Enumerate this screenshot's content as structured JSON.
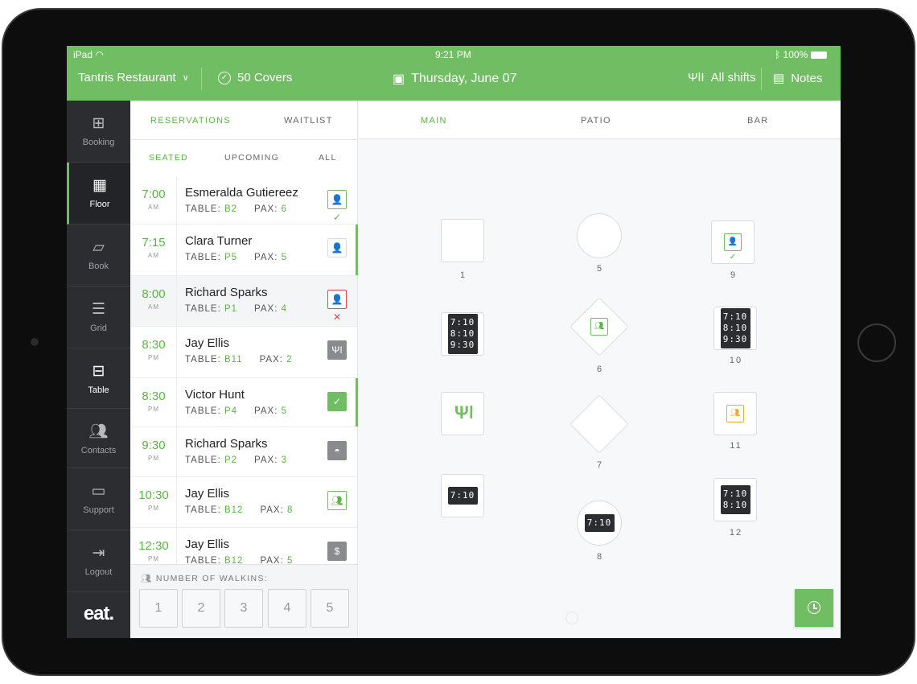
{
  "status_bar": {
    "device": "iPad",
    "time": "9:21 PM",
    "battery": "100%"
  },
  "header": {
    "restaurant": "Tantris Restaurant",
    "covers": "50 Covers",
    "date": "Thursday, June 07",
    "shifts": "All shifts",
    "notes": "Notes"
  },
  "colors": {
    "accent": "#71bd63",
    "sidebar": "#2c2d31",
    "cancel": "#e5474f",
    "pending": "#f0a93a"
  },
  "sidebar": {
    "items": [
      {
        "label": "Booking",
        "icon": "calendar-plus-icon"
      },
      {
        "label": "Floor",
        "icon": "grid-icon",
        "active": true
      },
      {
        "label": "Book",
        "icon": "book-icon"
      },
      {
        "label": "Grid",
        "icon": "menu-lines-icon"
      },
      {
        "label": "Table",
        "icon": "table-icon"
      },
      {
        "label": "Contacts",
        "icon": "contacts-icon"
      },
      {
        "label": "Support",
        "icon": "chat-icon"
      },
      {
        "label": "Logout",
        "icon": "logout-icon"
      }
    ],
    "logo": "eat."
  },
  "list": {
    "tabs": [
      "RESERVATIONS",
      "WAITLIST"
    ],
    "subtabs": [
      "SEATED",
      "UPCOMING",
      "ALL"
    ],
    "table_label": "TABLE:",
    "pax_label": "PAX:",
    "rows": [
      {
        "time": "7:00",
        "ampm": "AM",
        "name": "Esmeralda Gutiereez",
        "table": "B2",
        "pax": "6",
        "status": "confirmed"
      },
      {
        "time": "7:15",
        "ampm": "AM",
        "name": "Clara Turner",
        "table": "P5",
        "pax": "5",
        "status": "unconfirmed"
      },
      {
        "time": "8:00",
        "ampm": "AM",
        "name": "Richard Sparks",
        "table": "P1",
        "pax": "4",
        "status": "cancelled"
      },
      {
        "time": "8:30",
        "ampm": "PM",
        "name": "Jay Ellis",
        "table": "B11",
        "pax": "2",
        "status": "eating"
      },
      {
        "time": "8:30",
        "ampm": "PM",
        "name": "Victor Hunt",
        "table": "P4",
        "pax": "5",
        "status": "checked"
      },
      {
        "time": "9:30",
        "ampm": "PM",
        "name": "Richard Sparks",
        "table": "P2",
        "pax": "3",
        "status": "dessert"
      },
      {
        "time": "10:30",
        "ampm": "PM",
        "name": "Jay Ellis",
        "table": "B12",
        "pax": "8",
        "status": "seated"
      },
      {
        "time": "12:30",
        "ampm": "PM",
        "name": "Jay Ellis",
        "table": "B12",
        "pax": "5",
        "status": "paid"
      }
    ]
  },
  "walkins": {
    "label": "NUMBER OF WALKINS:",
    "options": [
      "1",
      "2",
      "3",
      "4",
      "5"
    ]
  },
  "floor": {
    "tabs": [
      "MAIN",
      "PATIO",
      "BAR"
    ],
    "tables": [
      {
        "label": "1",
        "shape": "square"
      },
      {
        "label": "5",
        "shape": "round"
      },
      {
        "label": "9",
        "shape": "square",
        "status": "confirmed"
      },
      {
        "label": "",
        "shape": "square",
        "times": [
          "7:10",
          "8:10",
          "9:30"
        ]
      },
      {
        "label": "6",
        "shape": "diamond",
        "status": "seated"
      },
      {
        "label": "10",
        "shape": "square",
        "times": [
          "7:10",
          "8:10",
          "9:30"
        ]
      },
      {
        "label": "",
        "shape": "square",
        "status": "eating"
      },
      {
        "label": "7",
        "shape": "diamond"
      },
      {
        "label": "11",
        "shape": "square",
        "status": "pending"
      },
      {
        "label": "",
        "shape": "square",
        "times": [
          "7:10"
        ]
      },
      {
        "label": "8",
        "shape": "round",
        "times": [
          "7:10"
        ]
      },
      {
        "label": "12",
        "shape": "square",
        "times": [
          "7:10",
          "8:10"
        ]
      }
    ]
  }
}
